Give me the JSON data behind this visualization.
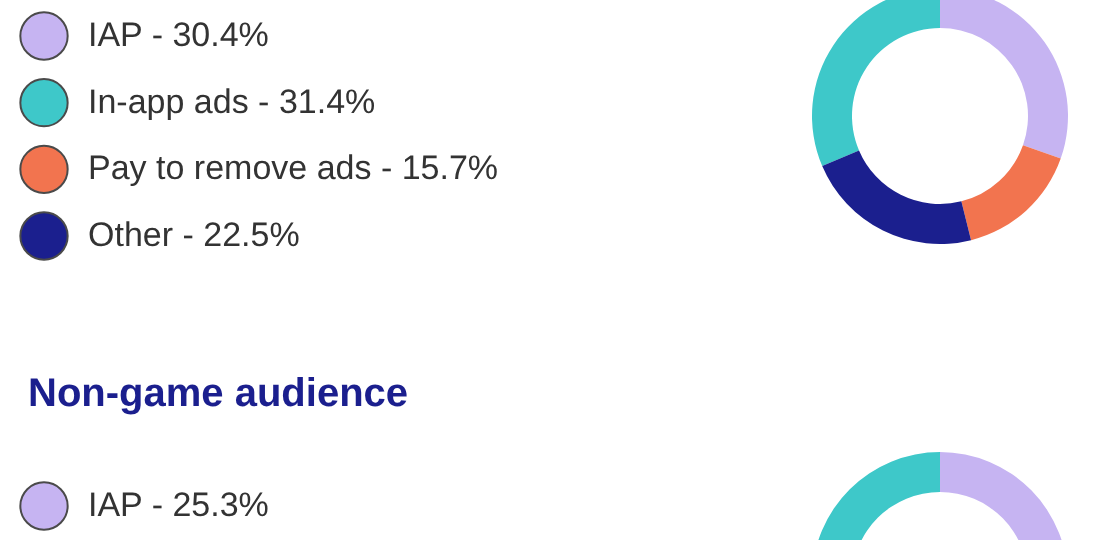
{
  "chart_data": [
    {
      "type": "donut",
      "categories": [
        "IAP",
        "In-app ads",
        "Pay to remove ads",
        "Other"
      ],
      "values": [
        30.4,
        31.4,
        15.7,
        22.5
      ],
      "value_labels": [
        "30.4%",
        "31.4%",
        "15.7%",
        "22.5%"
      ],
      "colors": [
        "#c6b4f2",
        "#3ec8c9",
        "#f2744f",
        "#1b1f8e"
      ],
      "legend": "left"
    },
    {
      "type": "donut",
      "title": "Non-game audience",
      "categories": [
        "IAP",
        null
      ],
      "values": [
        25.3,
        74.7
      ],
      "value_labels": [
        "25.3%",
        null
      ],
      "colors": [
        "#c6b4f2",
        "#3ec8c9"
      ],
      "legend": "left"
    }
  ]
}
